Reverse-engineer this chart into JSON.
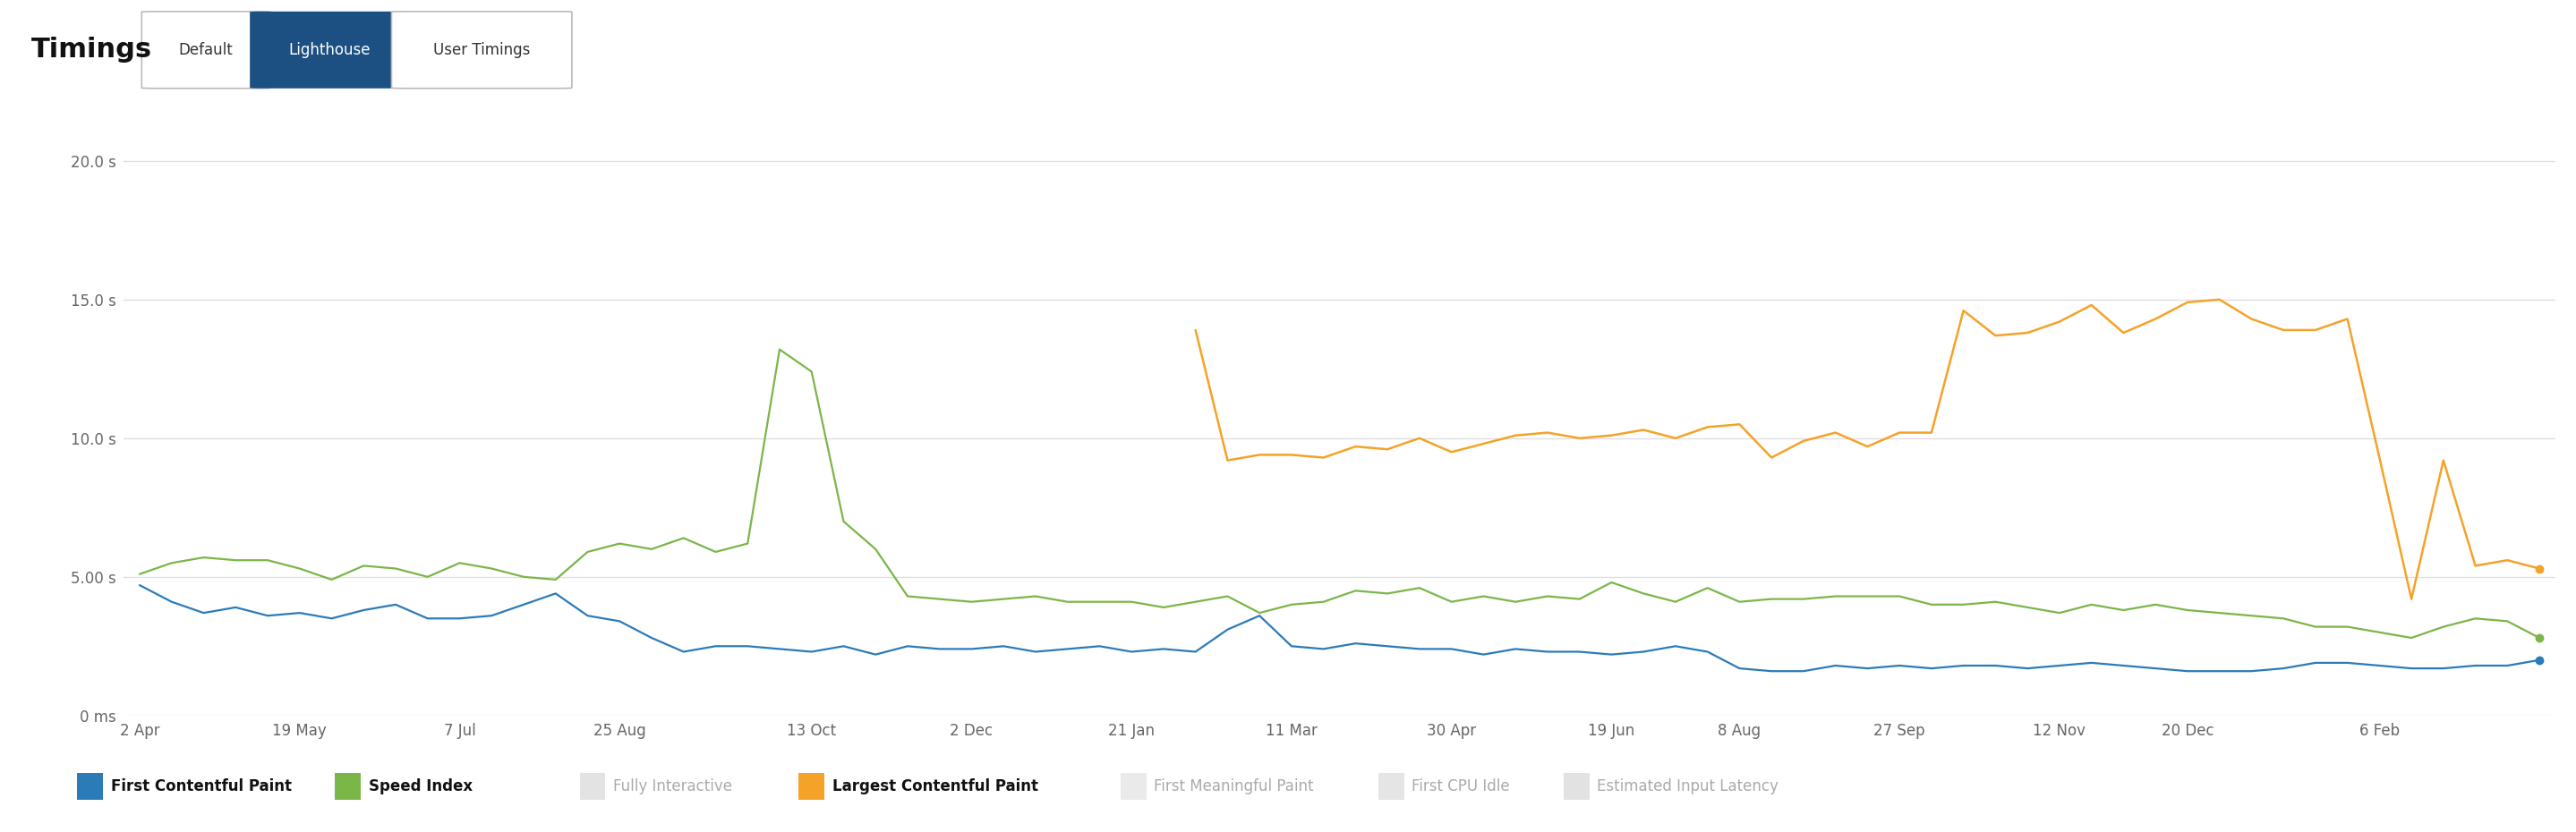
{
  "title_text": "Timings",
  "tab_default": "Default",
  "tab_lighthouse": "Lighthouse",
  "tab_usertimings": "User Timings",
  "background_color": "#ffffff",
  "plot_bg_color": "#ffffff",
  "grid_color": "#dddddd",
  "ytick_labels": [
    "0 ms",
    "5.00 s",
    "10.0 s",
    "15.0 s",
    "20.0 s"
  ],
  "ytick_vals": [
    0,
    5,
    10,
    15,
    20
  ],
  "x_labels": [
    "2 Apr",
    "19 May",
    "7 Jul",
    "25 Aug",
    "13 Oct",
    "2 Dec",
    "21 Jan",
    "11 Mar",
    "30 Apr",
    "19 Jun",
    "8 Aug",
    "27 Sep",
    "12 Nov",
    "20 Dec",
    "6 Feb"
  ],
  "x_tick_positions": [
    0,
    5,
    10,
    15,
    21,
    26,
    31,
    36,
    41,
    46,
    50,
    55,
    60,
    64,
    70
  ],
  "fcp_color": "#2b7bb9",
  "speed_index_color": "#7ab648",
  "lcp_color": "#f5a228",
  "legend_entries": [
    {
      "label": "First Contentful Paint",
      "color": "#2b7bb9",
      "active": true
    },
    {
      "label": "Speed Index",
      "color": "#7ab648",
      "active": true
    },
    {
      "label": "Fully Interactive",
      "color": "#bbbbbb",
      "active": false
    },
    {
      "label": "Largest Contentful Paint",
      "color": "#f5a228",
      "active": true
    },
    {
      "label": "First Meaningful Paint",
      "color": "#cccccc",
      "active": false
    },
    {
      "label": "First CPU Idle",
      "color": "#c0c0c0",
      "active": false
    },
    {
      "label": "Estimated Input Latency",
      "color": "#b8b8b8",
      "active": false
    }
  ],
  "fcp_data": [
    4.7,
    4.1,
    3.7,
    3.9,
    3.6,
    3.7,
    3.5,
    3.8,
    4.0,
    3.5,
    3.5,
    3.6,
    4.0,
    4.4,
    3.6,
    3.4,
    2.8,
    2.3,
    2.5,
    2.5,
    2.4,
    2.3,
    2.5,
    2.2,
    2.5,
    2.4,
    2.4,
    2.5,
    2.3,
    2.4,
    2.5,
    2.3,
    2.4,
    2.3,
    3.1,
    3.6,
    2.5,
    2.4,
    2.6,
    2.5,
    2.4,
    2.4,
    2.2,
    2.4,
    2.3,
    2.3,
    2.2,
    2.3,
    2.5,
    2.3,
    1.7,
    1.6,
    1.6,
    1.8,
    1.7,
    1.8,
    1.7,
    1.8,
    1.8,
    1.7,
    1.8,
    1.9,
    1.8,
    1.7,
    1.6,
    1.6,
    1.6,
    1.7,
    1.9,
    1.9,
    1.8,
    1.7,
    1.7,
    1.8,
    1.8,
    2.0
  ],
  "speed_index_data": [
    5.1,
    5.5,
    5.7,
    5.6,
    5.6,
    5.3,
    4.9,
    5.4,
    5.3,
    5.0,
    5.5,
    5.3,
    5.0,
    4.9,
    5.9,
    6.2,
    6.0,
    6.4,
    5.9,
    6.2,
    13.2,
    12.4,
    7.0,
    6.0,
    4.3,
    4.2,
    4.1,
    4.2,
    4.3,
    4.1,
    4.1,
    4.1,
    3.9,
    4.1,
    4.3,
    3.7,
    4.0,
    4.1,
    4.5,
    4.4,
    4.6,
    4.1,
    4.3,
    4.1,
    4.3,
    4.2,
    4.8,
    4.4,
    4.1,
    4.6,
    4.1,
    4.2,
    4.2,
    4.3,
    4.3,
    4.3,
    4.0,
    4.0,
    4.1,
    3.9,
    3.7,
    4.0,
    3.8,
    4.0,
    3.8,
    3.7,
    3.6,
    3.5,
    3.2,
    3.2,
    3.0,
    2.8,
    3.2,
    3.5,
    3.4,
    2.8
  ],
  "lcp_data": [
    null,
    null,
    null,
    null,
    null,
    null,
    null,
    null,
    null,
    null,
    null,
    null,
    null,
    null,
    null,
    null,
    null,
    null,
    null,
    null,
    null,
    null,
    null,
    null,
    null,
    null,
    null,
    null,
    null,
    null,
    null,
    null,
    null,
    13.9,
    9.2,
    9.4,
    9.4,
    9.3,
    9.7,
    9.6,
    10.0,
    9.5,
    9.8,
    10.1,
    10.2,
    10.0,
    10.1,
    10.3,
    10.0,
    10.4,
    10.5,
    9.3,
    9.9,
    10.2,
    9.7,
    10.2,
    10.2,
    14.6,
    13.7,
    13.8,
    14.2,
    14.8,
    13.8,
    14.3,
    14.9,
    15.0,
    14.3,
    13.9,
    13.9,
    14.3,
    9.3,
    4.2,
    9.2,
    5.4,
    5.6,
    5.3
  ],
  "n_points": 76
}
